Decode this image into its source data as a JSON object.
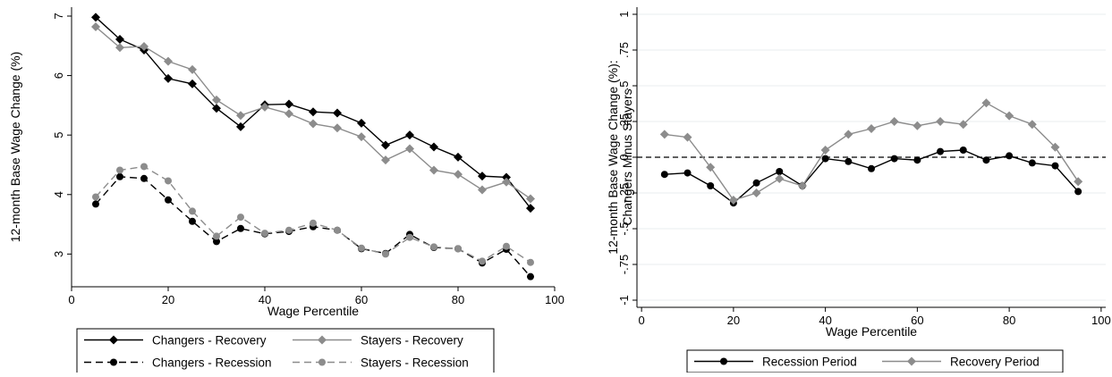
{
  "chart_data": [
    {
      "type": "line",
      "xlabel": "Wage Percentile",
      "ylabel": "12-month Base Wage Change (%)",
      "xlim": [
        0,
        100
      ],
      "ylim": [
        2.45,
        7.15
      ],
      "xticks": [
        "0",
        "20",
        "40",
        "60",
        "80",
        "100"
      ],
      "yticks": [
        "3",
        "4",
        "5",
        "6",
        "7"
      ],
      "legend": {
        "placement": "bottom",
        "columns": 2
      },
      "x": [
        5,
        10,
        15,
        20,
        25,
        30,
        35,
        40,
        45,
        50,
        55,
        60,
        65,
        70,
        75,
        80,
        85,
        90,
        95
      ],
      "series": [
        {
          "name": "Changers - Recovery",
          "color": "#000000",
          "dash": "solid",
          "marker": "diamond",
          "values": [
            6.98,
            6.61,
            6.43,
            5.95,
            5.86,
            5.45,
            5.14,
            5.51,
            5.52,
            5.39,
            5.37,
            5.2,
            4.83,
            5.0,
            4.8,
            4.63,
            4.31,
            4.29,
            3.77
          ]
        },
        {
          "name": "Stayers - Recovery",
          "color": "#8c8c8c",
          "dash": "solid",
          "marker": "diamond",
          "values": [
            6.82,
            6.47,
            6.49,
            6.24,
            6.1,
            5.59,
            5.33,
            5.47,
            5.36,
            5.19,
            5.12,
            4.97,
            4.58,
            4.77,
            4.41,
            4.34,
            4.08,
            4.21,
            3.93
          ]
        },
        {
          "name": "Changers - Recession",
          "color": "#000000",
          "dash": "dashed",
          "marker": "circle",
          "values": [
            3.84,
            4.3,
            4.27,
            3.91,
            3.55,
            3.21,
            3.43,
            3.34,
            3.38,
            3.46,
            3.4,
            3.09,
            3.01,
            3.33,
            3.11,
            3.09,
            2.85,
            3.08,
            2.62
          ]
        },
        {
          "name": "Stayers - Recession",
          "color": "#8c8c8c",
          "dash": "dashed",
          "marker": "circle",
          "values": [
            3.96,
            4.41,
            4.47,
            4.23,
            3.72,
            3.3,
            3.62,
            3.35,
            3.4,
            3.52,
            3.4,
            3.1,
            3.0,
            3.28,
            3.12,
            3.09,
            2.88,
            3.13,
            2.86
          ]
        }
      ]
    },
    {
      "type": "line",
      "xlabel": "Wage Percentile",
      "ylabel": "12-month Base Wage Change (%): Changers Minus Stayers",
      "ylabel_lines": [
        "12-month Base Wage Change (%):",
        "Changers Minus Stayers"
      ],
      "xlim": [
        -1,
        101
      ],
      "ylim": [
        -1.05,
        1.05
      ],
      "xticks": [
        "0",
        "20",
        "40",
        "60",
        "80",
        "100"
      ],
      "yticks": [
        "-1",
        "-.75",
        "-.5",
        "-.25",
        "0",
        ".25",
        ".5",
        ".75",
        "1"
      ],
      "reference_line": {
        "y": 0,
        "style": "dashed"
      },
      "grid": true,
      "legend": {
        "placement": "bottom",
        "columns": 2
      },
      "x": [
        5,
        10,
        15,
        20,
        25,
        30,
        35,
        40,
        45,
        50,
        55,
        60,
        65,
        70,
        75,
        80,
        85,
        90,
        95
      ],
      "series": [
        {
          "name": "Recession Period",
          "color": "#000000",
          "dash": "solid",
          "marker": "circle",
          "values": [
            -0.12,
            -0.11,
            -0.2,
            -0.32,
            -0.18,
            -0.1,
            -0.2,
            -0.01,
            -0.03,
            -0.08,
            -0.01,
            -0.02,
            0.04,
            0.05,
            -0.02,
            0.01,
            -0.04,
            -0.06,
            -0.24
          ]
        },
        {
          "name": "Recovery Period",
          "color": "#8c8c8c",
          "dash": "solid",
          "marker": "diamond",
          "values": [
            0.16,
            0.14,
            -0.07,
            -0.3,
            -0.25,
            -0.15,
            -0.2,
            0.05,
            0.16,
            0.2,
            0.25,
            0.22,
            0.25,
            0.23,
            0.38,
            0.29,
            0.23,
            0.07,
            -0.17
          ]
        }
      ]
    }
  ]
}
